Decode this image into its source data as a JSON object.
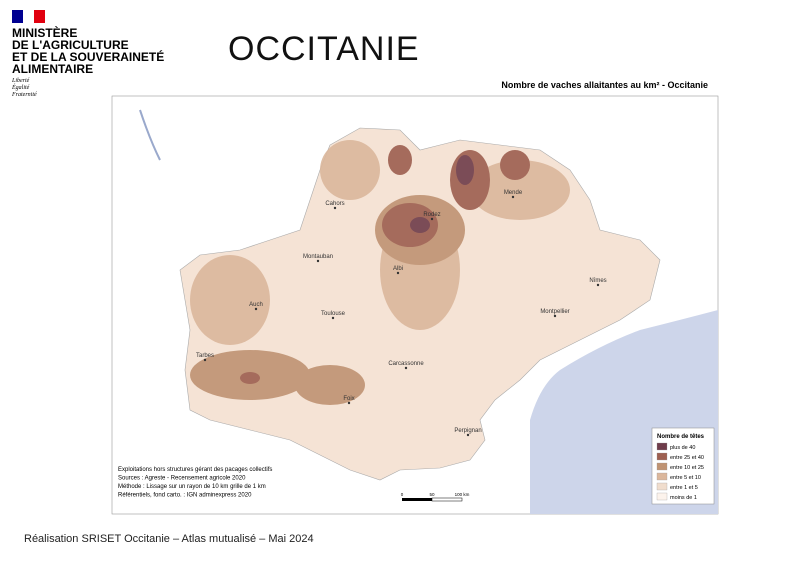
{
  "header": {
    "ministry": [
      "MINISTÈRE",
      "DE L'AGRICULTURE",
      "ET DE LA SOUVERAINETÉ",
      "ALIMENTAIRE"
    ],
    "motto": [
      "Liberté",
      "Égalité",
      "Fraternité"
    ],
    "title": "OCCITANIE"
  },
  "map": {
    "title": "Nombre de vaches allaitantes au km² - Occitanie",
    "cities": [
      "Cahors",
      "Rodez",
      "Mende",
      "Montauban",
      "Albi",
      "Nîmes",
      "Auch",
      "Toulouse",
      "Montpellier",
      "Tarbes",
      "Carcassonne",
      "Foix",
      "Perpignan"
    ],
    "legend": {
      "title": "Nombre de têtes",
      "items": [
        {
          "label": "plus de  40",
          "color": "#6e3c4a"
        },
        {
          "label": "entre 25 et 40",
          "color": "#9d5f50"
        },
        {
          "label": "entre 10 et 25",
          "color": "#bf9373"
        },
        {
          "label": "entre 5 et 10",
          "color": "#dbb79c"
        },
        {
          "label": "entre 1 et 5",
          "color": "#f0ddcd"
        },
        {
          "label": "moins de 1",
          "color": "#fcf3ec"
        }
      ]
    },
    "sources": [
      "Exploitations hors structures gérant des pacages collectifs",
      "Sources : Agreste - Recensement agricole 2020",
      "Méthode : Lissage sur un rayon de 10 km grille de 1 km",
      "Référentiels, fond carto. : IGN adminexpress 2020"
    ],
    "scale": [
      "0",
      "50",
      "100 km"
    ]
  },
  "footer": "Réalisation SRISET  Occitanie – Atlas mutualisé – Mai 2024"
}
